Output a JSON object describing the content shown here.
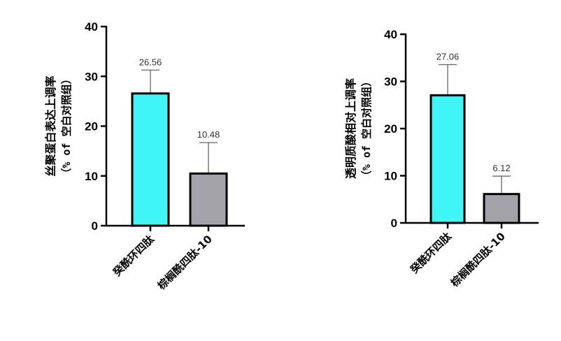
{
  "colors": {
    "cyan": "#3ff5f5",
    "gray": "#a4a3aa"
  },
  "chart_data": [
    {
      "type": "bar",
      "ylabel": "丝聚蛋白表达上调率",
      "ylabel_sub": "（% of 空白对照组）",
      "categories": [
        "癸酰环四肽",
        "棕榈酰四肽-10"
      ],
      "values": [
        26.56,
        10.48
      ],
      "errors": [
        4.7,
        6.2
      ],
      "data_labels": [
        "26.56",
        "10.48"
      ],
      "bar_colors": [
        "#3ff5f5",
        "#a4a3aa"
      ],
      "ylim": [
        0,
        40
      ],
      "yticks": [
        0,
        10,
        20,
        30,
        40
      ]
    },
    {
      "type": "bar",
      "ylabel": "透明质酸相对上调率",
      "ylabel_sub": "（% of 空白对照组）",
      "categories": [
        "癸酰环四肽",
        "棕榈酰四肽-10"
      ],
      "values": [
        27.06,
        6.12
      ],
      "errors": [
        6.5,
        3.8
      ],
      "data_labels": [
        "27.06",
        "6.12"
      ],
      "bar_colors": [
        "#3ff5f5",
        "#a4a3aa"
      ],
      "ylim": [
        0,
        40
      ],
      "yticks": [
        0,
        10,
        20,
        30,
        40
      ]
    }
  ]
}
